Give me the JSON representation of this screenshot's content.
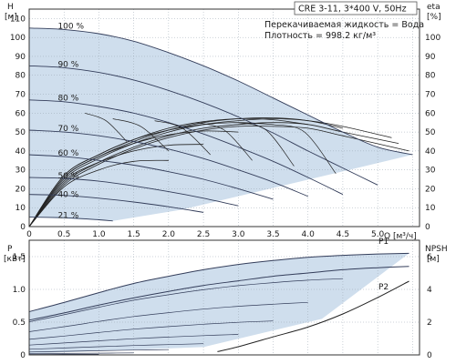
{
  "header": {
    "title": "CRE 3-11, 3*400 V, 50Hz",
    "fluid": "Перекачиваемая жидкость = Вода",
    "density": "Плотность = 998.2 кг/м³"
  },
  "chart_data": [
    {
      "type": "line",
      "panel": "head",
      "ylabel_left": [
        "H",
        "[м]"
      ],
      "ylabel_right": [
        "eta",
        "[%]"
      ],
      "xlabel": "Q [м³/ч]",
      "xlim": [
        0,
        5.6
      ],
      "ylim": [
        0,
        115
      ],
      "x_ticks": [
        "0",
        "0.5",
        "1.0",
        "1.5",
        "2.0",
        "2.5",
        "3.0",
        "3.5",
        "4.0",
        "4.5",
        "5.0"
      ],
      "y_ticks": [
        "0",
        "10",
        "20",
        "30",
        "40",
        "50",
        "60",
        "70",
        "80",
        "90",
        "100",
        "110"
      ],
      "y2_ticks": [
        "0",
        "10",
        "20",
        "30",
        "40",
        "50",
        "60",
        "70",
        "80",
        "90",
        "100"
      ],
      "speed_labels": [
        "100 %",
        "90 %",
        "80 %",
        "70 %",
        "60 %",
        "50 %",
        "40 %",
        "21 %"
      ],
      "series": [
        {
          "name": "100 %",
          "x": [
            0,
            0.5,
            1,
            1.5,
            2,
            2.5,
            3,
            3.5,
            4,
            4.5,
            5,
            5.5
          ],
          "values": [
            105,
            104.2,
            102,
            98,
            92,
            85,
            77,
            68,
            59,
            50,
            42,
            38
          ]
        },
        {
          "name": "90 %",
          "x": [
            0,
            0.5,
            1,
            1.5,
            2,
            2.5,
            3,
            3.5,
            4,
            4.5,
            5
          ],
          "values": [
            85,
            84,
            81.5,
            77.5,
            72,
            65.5,
            58,
            49.5,
            40,
            31,
            22
          ]
        },
        {
          "name": "80 %",
          "x": [
            0,
            0.5,
            1,
            1.5,
            2,
            2.5,
            3,
            3.5,
            4,
            4.5
          ],
          "values": [
            67,
            66,
            63.5,
            60,
            55,
            49,
            42,
            34.5,
            26,
            17
          ]
        },
        {
          "name": "70 %",
          "x": [
            0,
            0.5,
            1,
            1.5,
            2,
            2.5,
            3,
            3.5,
            4
          ],
          "values": [
            51,
            50,
            48,
            45,
            41,
            36,
            30,
            23.5,
            16
          ]
        },
        {
          "name": "60 %",
          "x": [
            0,
            0.5,
            1,
            1.5,
            2,
            2.5,
            3,
            3.5
          ],
          "values": [
            38,
            37,
            35,
            32.5,
            29,
            25,
            20,
            14.5
          ]
        },
        {
          "name": "50 %",
          "x": [
            0,
            0.5,
            1,
            1.5,
            2,
            2.5,
            3
          ],
          "values": [
            26,
            25.5,
            24,
            21.5,
            18.5,
            15,
            11
          ]
        },
        {
          "name": "40 %",
          "x": [
            0,
            0.5,
            1,
            1.5,
            2,
            2.5
          ],
          "values": [
            17,
            16.5,
            15,
            13,
            10.5,
            7.5
          ]
        },
        {
          "name": "21 %",
          "x": [
            0,
            0.5,
            1,
            1.2
          ],
          "values": [
            5,
            4.7,
            3.6,
            3
          ]
        }
      ],
      "efficiency_curves": [
        {
          "x": [
            0,
            0.5,
            1,
            1.5,
            2,
            2.5,
            3,
            3.5,
            4,
            4.5,
            5.45
          ],
          "values": [
            0,
            22,
            33,
            41,
            47,
            51,
            53,
            53,
            52,
            48,
            40
          ]
        },
        {
          "x": [
            0,
            0.5,
            1,
            1.5,
            2,
            2.5,
            3,
            3.5,
            4,
            4.5,
            5.3
          ],
          "values": [
            0,
            23,
            34,
            42,
            48,
            52,
            54,
            55,
            54,
            50,
            44
          ]
        },
        {
          "x": [
            0,
            0.5,
            1,
            1.5,
            2,
            2.5,
            3,
            3.5,
            4,
            4.5,
            5.2
          ],
          "values": [
            0,
            25,
            36,
            44,
            50,
            54,
            56,
            57,
            56,
            53,
            47
          ]
        },
        {
          "x": [
            0,
            0.5,
            1,
            1.5,
            2,
            2.5,
            3,
            3.5,
            4,
            4.5
          ],
          "values": [
            0,
            26,
            37,
            45,
            51,
            55,
            57,
            57.5,
            56,
            52
          ]
        },
        {
          "x": [
            0,
            0.5,
            1,
            1.5,
            2,
            2.5,
            3,
            3.5,
            4
          ],
          "values": [
            0,
            27,
            38,
            46,
            52,
            55.5,
            57,
            56.5,
            54
          ]
        },
        {
          "x": [
            0,
            0.5,
            1,
            1.5,
            2,
            2.5,
            3,
            3.5
          ],
          "values": [
            0,
            27,
            38,
            46,
            51,
            54,
            55,
            54
          ]
        },
        {
          "x": [
            0,
            0.5,
            1,
            1.5,
            2,
            2.5,
            3
          ],
          "values": [
            0,
            26,
            37,
            44,
            48.5,
            50.5,
            50
          ]
        },
        {
          "x": [
            0,
            0.5,
            1,
            1.5,
            2,
            2.5
          ],
          "values": [
            0,
            24,
            34,
            40,
            43,
            43.5
          ]
        },
        {
          "x": [
            0,
            0.5,
            1,
            1.5,
            2
          ],
          "values": [
            0,
            21,
            30,
            34.5,
            35
          ]
        }
      ]
    },
    {
      "type": "line",
      "panel": "power",
      "ylabel_left": [
        "P",
        "[кВт]"
      ],
      "ylabel_right": [
        "NPSH",
        "[м]"
      ],
      "xlim": [
        0,
        5.6
      ],
      "ylim": [
        0,
        1.75
      ],
      "y_ticks": [
        "0",
        "0.5",
        "1.0",
        "1.5"
      ],
      "y2_ticks": [
        "0",
        "2",
        "4",
        "6"
      ],
      "series": [
        {
          "name": "P1",
          "x": [
            0,
            0.5,
            1,
            1.5,
            2,
            2.5,
            3,
            3.5,
            4,
            4.5,
            5,
            5.45
          ],
          "values": [
            0.66,
            0.8,
            0.95,
            1.09,
            1.2,
            1.3,
            1.38,
            1.44,
            1.49,
            1.52,
            1.54,
            1.55
          ]
        },
        {
          "name": "P2",
          "x": [
            0,
            0.5,
            1,
            1.5,
            2,
            2.5,
            3,
            3.5,
            4,
            4.5,
            5,
            5.45
          ],
          "values": [
            0.53,
            0.64,
            0.76,
            0.87,
            0.97,
            1.06,
            1.13,
            1.2,
            1.25,
            1.3,
            1.33,
            1.35
          ]
        }
      ],
      "npsh_curve": {
        "x": [
          2.7,
          3.0,
          3.5,
          4.0,
          4.5,
          5.0,
          5.45
        ],
        "values": [
          0.2,
          0.5,
          1.1,
          1.7,
          2.5,
          3.5,
          4.5
        ]
      }
    }
  ]
}
